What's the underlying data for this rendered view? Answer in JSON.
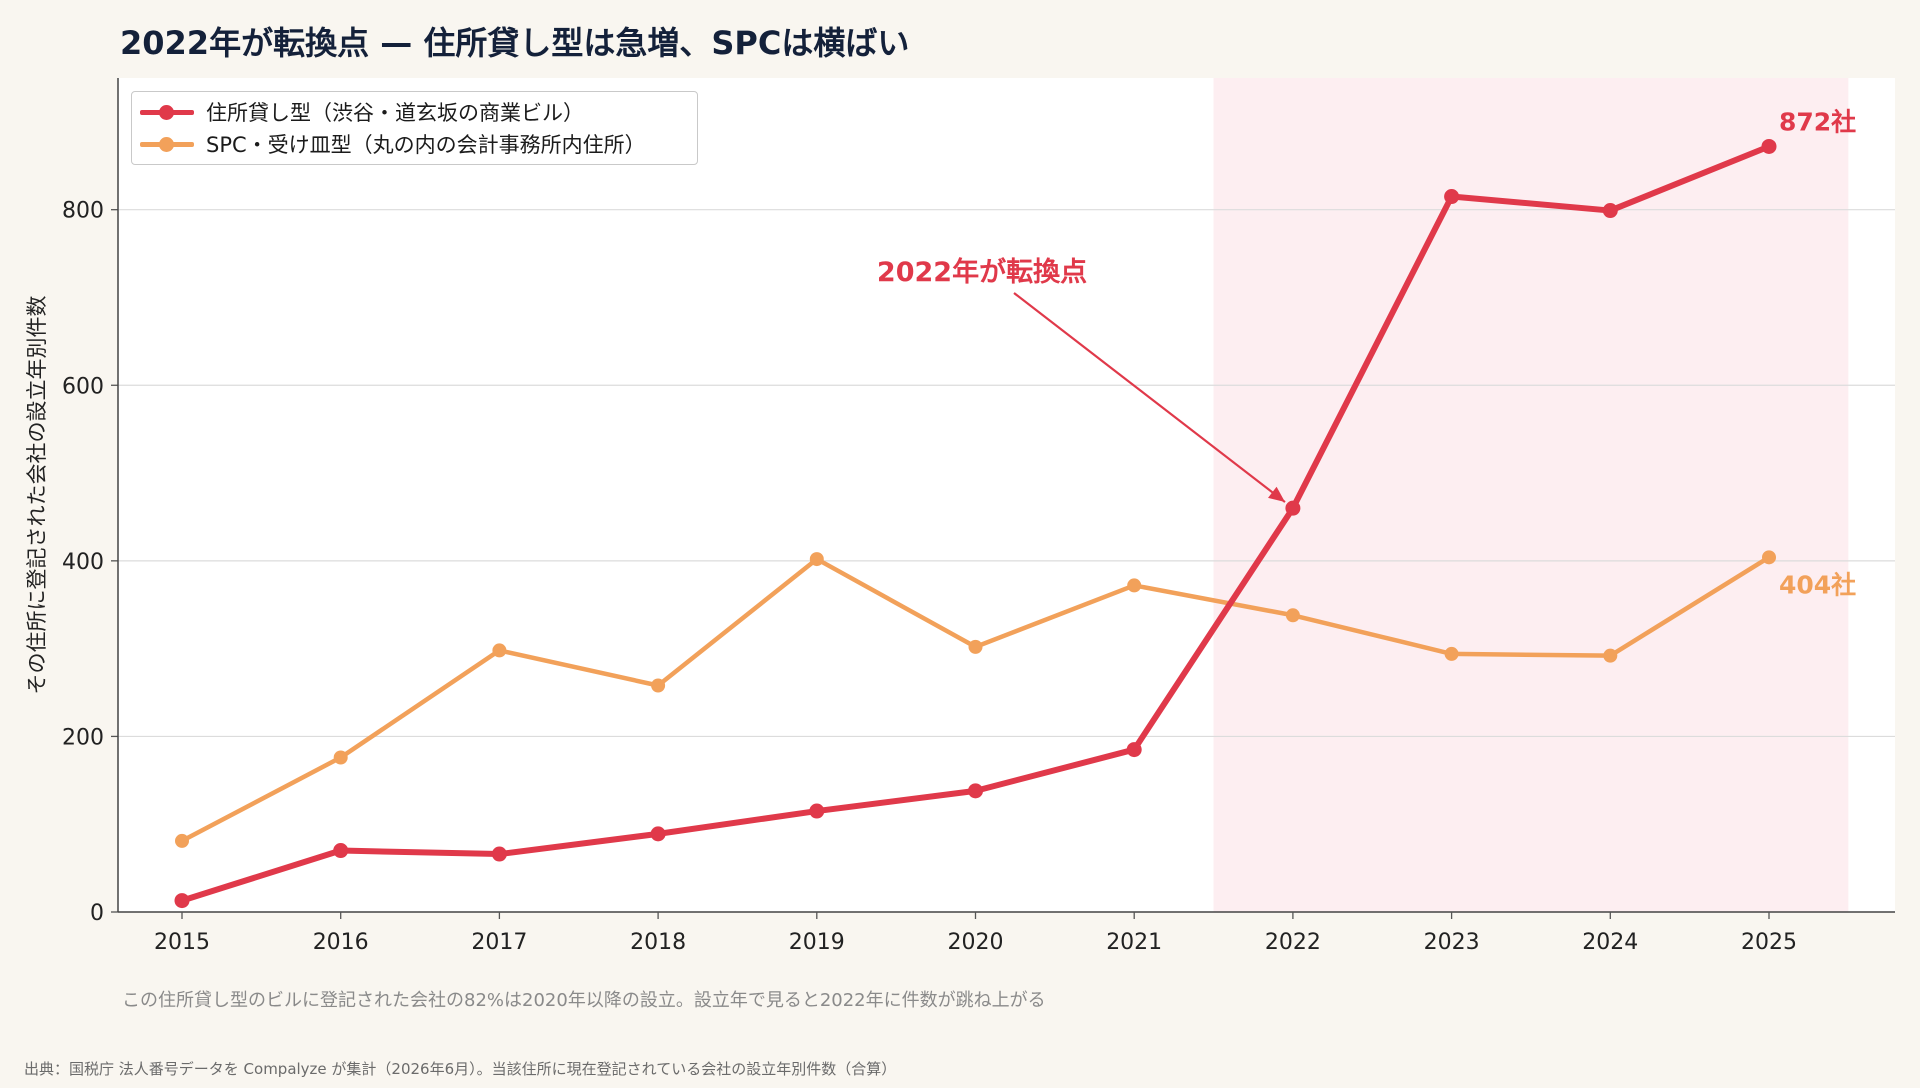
{
  "title": "2022年が転換点 — 住所貸し型は急増、SPCは横ばい",
  "caption": "この住所貸し型のビルに登記された会社の82%は2020年以降の設立。設立年で見ると2022年に件数が跳ね上がる",
  "source": "出典：国税庁 法人番号データを Compalyze が集計（2026年6月）。当該住所に現在登記されている会社の設立年別件数（合算）",
  "colors": {
    "red": "#e0394a",
    "orange": "#f2a15a",
    "highlight": "#fdeef1"
  },
  "chart_data": {
    "type": "line",
    "x": [
      2015,
      2016,
      2017,
      2018,
      2019,
      2020,
      2021,
      2022,
      2023,
      2024,
      2025
    ],
    "x_tick_labels": [
      "2015",
      "2016",
      "2017",
      "2018",
      "2019",
      "2020",
      "2021",
      "2022",
      "2023",
      "2024",
      "2025"
    ],
    "ylabel": "その住所に登記された会社の設立年別件数",
    "ylim": [
      0,
      950
    ],
    "y_ticks": [
      0,
      200,
      400,
      600,
      800
    ],
    "y_tick_labels": [
      "0",
      "200",
      "400",
      "600",
      "800"
    ],
    "grid": "horizontal",
    "legend_position": "top-left",
    "highlight_range": [
      2021.5,
      2025.5
    ],
    "series": [
      {
        "name": "住所貸し型（渋谷・道玄坂の商業ビル）",
        "color": "#e0394a",
        "values": [
          13,
          70,
          66,
          89,
          115,
          138,
          185,
          460,
          815,
          799,
          872
        ],
        "end_label": "872社"
      },
      {
        "name": "SPC・受け皿型（丸の内の会計事務所内住所）",
        "color": "#f2a15a",
        "values": [
          81,
          176,
          298,
          258,
          402,
          302,
          372,
          338,
          294,
          292,
          404
        ],
        "end_label": "404社"
      }
    ],
    "annotation": {
      "text": "2022年が転換点",
      "target_x": 2022,
      "target_y": 460
    }
  }
}
